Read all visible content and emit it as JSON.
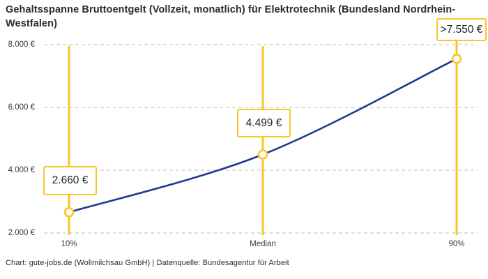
{
  "title": "Gehaltsspanne Bruttoentgelt (Vollzeit, monatlich) für Elektrotechnik (Bundesland Nordrhein-Westfalen)",
  "footer": "Chart: gute-jobs.de (Wollmilchsau GmbH) | Datenquelle: Bundesagentur für Arbeit",
  "colors": {
    "accent_yellow": "#FAC528",
    "line_blue": "#1F3A94",
    "grid_gray": "#CBCBCB",
    "text_dark": "#2B2B2B",
    "marker_fill": "#FFFFFF"
  },
  "chart_data": {
    "type": "line",
    "title": "Gehaltsspanne Bruttoentgelt (Vollzeit, monatlich) für Elektrotechnik (Bundesland Nordrhein-Westfalen)",
    "categories": [
      "10%",
      "Median",
      "90%"
    ],
    "values": [
      2660,
      4499,
      7550
    ],
    "point_labels": [
      "2.660 €",
      "4.499 €",
      ">7.550 €"
    ],
    "y_ticks": [
      "8.000 €",
      "6.000 €",
      "4.000 €",
      "2.000 €"
    ],
    "y_tick_values": [
      8000,
      6000,
      4000,
      2000
    ],
    "ylim": [
      2000,
      8000
    ],
    "xlabel": "",
    "ylabel": "",
    "grid": "horizontal-dashed",
    "legend": "none",
    "marker": "open-circle",
    "annotation_style": "yellow-boxed-value-on-vertical-rule"
  }
}
